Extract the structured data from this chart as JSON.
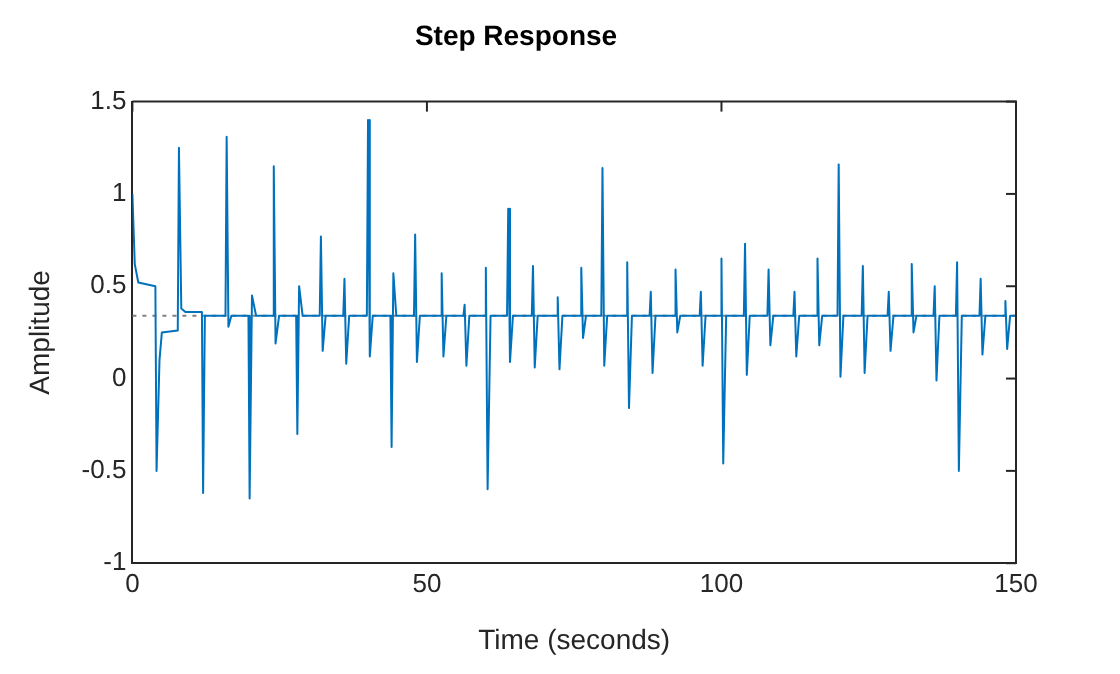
{
  "chart_data": {
    "type": "line",
    "title": "Step Response",
    "xlabel": "Time (seconds)",
    "ylabel": "Amplitude",
    "xlim": [
      0,
      150
    ],
    "xticks": [
      0,
      50,
      100,
      150
    ],
    "ylim": [
      -1,
      1.5
    ],
    "yticks": [
      -1,
      -0.5,
      0,
      0.5,
      1,
      1.5
    ],
    "legend": false,
    "marker": "none",
    "line_style": "solid",
    "ref_lines": [
      {
        "axis": "y",
        "value": 0.34,
        "color": "#808080",
        "line_style": "dotted"
      }
    ],
    "series": [
      {
        "color": "#0072bd",
        "x": [
          0,
          0.4,
          1,
          3.9,
          4.1,
          4.6,
          5,
          7.7,
          7.9,
          8.3,
          9,
          11.8,
          12,
          12.3,
          15.8,
          16,
          16.3,
          16.8,
          19.7,
          19.9,
          20.3,
          21,
          23.8,
          24,
          24.3,
          24.9,
          27.8,
          28,
          28.3,
          28.9,
          31.8,
          32,
          32.3,
          32.8,
          35.8,
          36,
          36.3,
          36.8,
          39.8,
          40,
          40.3,
          40.8,
          43.8,
          44,
          44.3,
          44.8,
          47.8,
          48,
          48.3,
          48.8,
          52.3,
          52.5,
          52.8,
          53.3,
          56.2,
          56.4,
          56.7,
          57.2,
          59.8,
          60,
          60.3,
          60.8,
          63.6,
          63.8,
          64.1,
          64.6,
          67.8,
          68,
          68.3,
          68.8,
          72,
          72.2,
          72.5,
          73,
          76,
          76.2,
          76.5,
          77,
          79.6,
          79.8,
          80.1,
          80.6,
          83.8,
          84,
          84.3,
          84.8,
          87.8,
          88,
          88.3,
          88.8,
          92,
          92.2,
          92.5,
          93,
          96.3,
          96.5,
          96.8,
          97.3,
          99.8,
          100,
          100.3,
          100.8,
          103.8,
          104,
          104.3,
          104.8,
          107.8,
          108,
          108.3,
          108.8,
          112.2,
          112.4,
          112.7,
          113.2,
          116.1,
          116.3,
          116.6,
          117.1,
          119.7,
          119.9,
          120.2,
          120.7,
          123.8,
          124,
          124.3,
          124.8,
          128.2,
          128.4,
          128.7,
          129.2,
          132.1,
          132.3,
          132.6,
          133.1,
          136,
          136.2,
          136.5,
          137,
          139.8,
          140,
          140.3,
          140.8,
          143.8,
          144,
          144.3,
          144.8,
          148,
          148.2,
          148.5,
          149,
          150
        ],
        "values": [
          1.0,
          0.62,
          0.52,
          0.5,
          -0.5,
          0.1,
          0.25,
          0.26,
          1.25,
          0.38,
          0.36,
          0.36,
          -0.62,
          0.34,
          0.34,
          1.31,
          0.28,
          0.34,
          0.34,
          -0.65,
          0.45,
          0.34,
          0.34,
          1.15,
          0.19,
          0.34,
          0.34,
          -0.3,
          0.5,
          0.34,
          0.34,
          0.77,
          0.15,
          0.34,
          0.34,
          0.54,
          0.08,
          0.34,
          0.34,
          1.4,
          0.12,
          0.34,
          0.34,
          -0.37,
          0.57,
          0.34,
          0.34,
          0.78,
          0.09,
          0.34,
          0.34,
          0.57,
          0.12,
          0.34,
          0.34,
          0.4,
          0.07,
          0.34,
          0.34,
          0.6,
          -0.6,
          0.34,
          0.34,
          0.92,
          0.09,
          0.34,
          0.34,
          0.61,
          0.06,
          0.34,
          0.34,
          0.44,
          0.05,
          0.34,
          0.34,
          0.6,
          0.22,
          0.34,
          0.34,
          1.14,
          0.07,
          0.34,
          0.34,
          0.63,
          -0.16,
          0.34,
          0.34,
          0.47,
          0.03,
          0.34,
          0.34,
          0.59,
          0.25,
          0.34,
          0.34,
          0.47,
          0.07,
          0.34,
          0.34,
          0.65,
          -0.46,
          0.34,
          0.34,
          0.73,
          0.02,
          0.34,
          0.34,
          0.59,
          0.18,
          0.34,
          0.34,
          0.47,
          0.12,
          0.34,
          0.34,
          0.65,
          0.18,
          0.34,
          0.34,
          1.16,
          0.01,
          0.34,
          0.34,
          0.61,
          0.03,
          0.34,
          0.34,
          0.47,
          0.15,
          0.34,
          0.34,
          0.62,
          0.25,
          0.34,
          0.34,
          0.5,
          -0.01,
          0.34,
          0.34,
          0.63,
          -0.5,
          0.34,
          0.34,
          0.54,
          0.13,
          0.34,
          0.34,
          0.42,
          0.16,
          0.34,
          0.34
        ]
      }
    ]
  }
}
